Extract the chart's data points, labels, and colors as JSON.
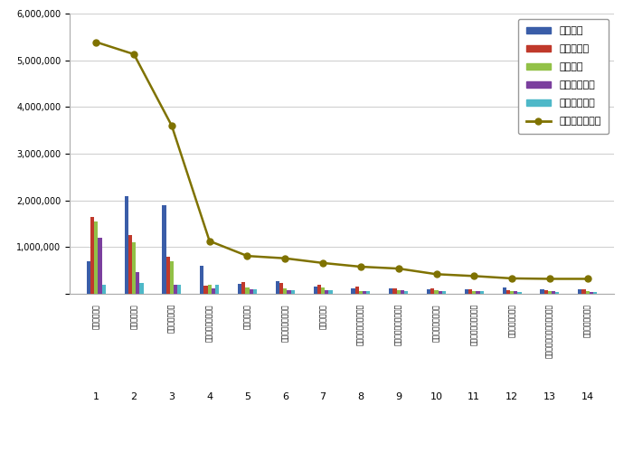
{
  "categories": [
    "한국소비자원",
    "도로교통공단",
    "공무원연금공단",
    "한국승강기안전공단",
    "한국제협력단",
    "한국소방산업기술원",
    "한국교류재단",
    "북한이탈주민지원재단",
    "민주화운동기념사업회",
    "한국공정거래조정원",
    "남북교류협력지원협회",
    "한국원산지정보원",
    "일제강제동원피해자지원재단",
    "재외동포협력센터"
  ],
  "x_labels": [
    "1",
    "2",
    "3",
    "4",
    "5",
    "6",
    "7",
    "8",
    "9",
    "10",
    "11",
    "12",
    "13",
    "14"
  ],
  "참여지수": [
    700000,
    2100000,
    1900000,
    600000,
    220000,
    270000,
    160000,
    120000,
    120000,
    100000,
    100000,
    130000,
    90000,
    100000
  ],
  "미디어지수": [
    1650000,
    1250000,
    800000,
    180000,
    260000,
    230000,
    200000,
    150000,
    110000,
    110000,
    100000,
    70000,
    80000,
    90000
  ],
  "소통지수": [
    1550000,
    1100000,
    700000,
    200000,
    140000,
    110000,
    130000,
    60000,
    80000,
    70000,
    60000,
    50000,
    60000,
    50000
  ],
  "커뮤니티지수": [
    1200000,
    470000,
    200000,
    120000,
    90000,
    80000,
    80000,
    60000,
    70000,
    60000,
    55000,
    50000,
    50000,
    45000
  ],
  "사회공헌지수": [
    200000,
    230000,
    200000,
    190000,
    90000,
    80000,
    70000,
    60000,
    55000,
    50000,
    50000,
    45000,
    40000,
    40000
  ],
  "브랜드평판지수": [
    5390000,
    5130000,
    3600000,
    1130000,
    810000,
    760000,
    660000,
    580000,
    540000,
    420000,
    380000,
    330000,
    320000,
    320000
  ],
  "colors": {
    "참여지수": "#3a5da8",
    "미디어지수": "#c0392b",
    "소통지수": "#92c147",
    "커뮤니티지수": "#7b3f9e",
    "사회공헌지수": "#4eb8c8"
  },
  "line_color": "#7f7200",
  "ylim": [
    0,
    6000000
  ],
  "yticks": [
    0,
    1000000,
    2000000,
    3000000,
    4000000,
    5000000,
    6000000
  ],
  "bar_width": 0.1,
  "figure_bg": "#ffffff",
  "axes_bg": "#ffffff",
  "grid_color": "#d0d0d0"
}
